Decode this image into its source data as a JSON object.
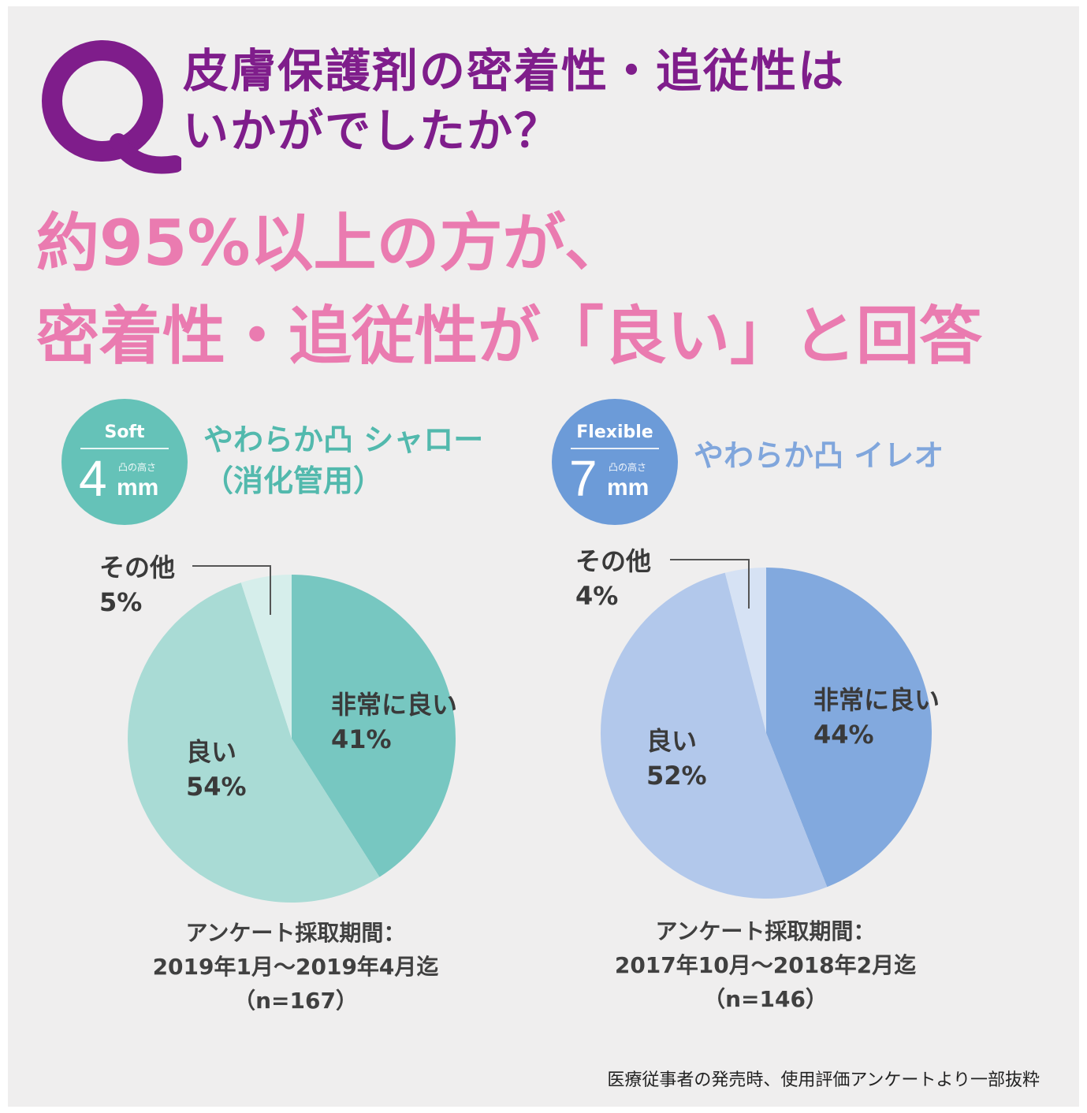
{
  "question": {
    "mark": "Q",
    "line1": "皮膚保護剤の密着性・追従性は",
    "line2": "いかがでしたか？"
  },
  "headline": {
    "line1": "約95%以上の方が、",
    "line2": "密着性・追従性が「良い」と回答"
  },
  "colors": {
    "question": "#7f1d8b",
    "headline": "#ea7bb0",
    "teal_badge": "#65c2b8",
    "blue_badge": "#6c9bd8"
  },
  "products": [
    {
      "badge_category": "Soft",
      "badge_number": "4",
      "badge_sub": "凸の高さ",
      "badge_unit": "mm",
      "name_line1": "やわらか凸 シャロー",
      "name_line2": "（消化管用）",
      "other_label": "その他",
      "other_pct": "5%",
      "period_label": "アンケート採取期間：",
      "period_dates": "2019年1月～2019年4月迄",
      "sample": "（n=167）"
    },
    {
      "badge_category": "Flexible",
      "badge_number": "7",
      "badge_sub": "凸の高さ",
      "badge_unit": "mm",
      "name_line1": "やわらか凸 イレオ",
      "name_line2": "",
      "other_label": "その他",
      "other_pct": "4%",
      "period_label": "アンケート採取期間：",
      "period_dates": "2017年10月～2018年2月迄",
      "sample": "（n=146）"
    }
  ],
  "chart_data": [
    {
      "type": "pie",
      "title": "やわらか凸 シャロー（消化管用）",
      "categories": [
        "非常に良い",
        "良い",
        "その他"
      ],
      "values": [
        41,
        54,
        5
      ],
      "value_labels": [
        "41%",
        "54%",
        "5%"
      ],
      "colors": [
        "#77c7c1",
        "#a9dbd5",
        "#d6eeeb"
      ],
      "sample_size": 167
    },
    {
      "type": "pie",
      "title": "やわらか凸 イレオ",
      "categories": [
        "非常に良い",
        "良い",
        "その他"
      ],
      "values": [
        44,
        52,
        4
      ],
      "value_labels": [
        "44%",
        "52%",
        "4%"
      ],
      "colors": [
        "#82a9de",
        "#b2c8eb",
        "#d6e2f4"
      ],
      "sample_size": 146
    }
  ],
  "footnote": "医療従事者の発売時、使用評価アンケートより一部抜粋"
}
